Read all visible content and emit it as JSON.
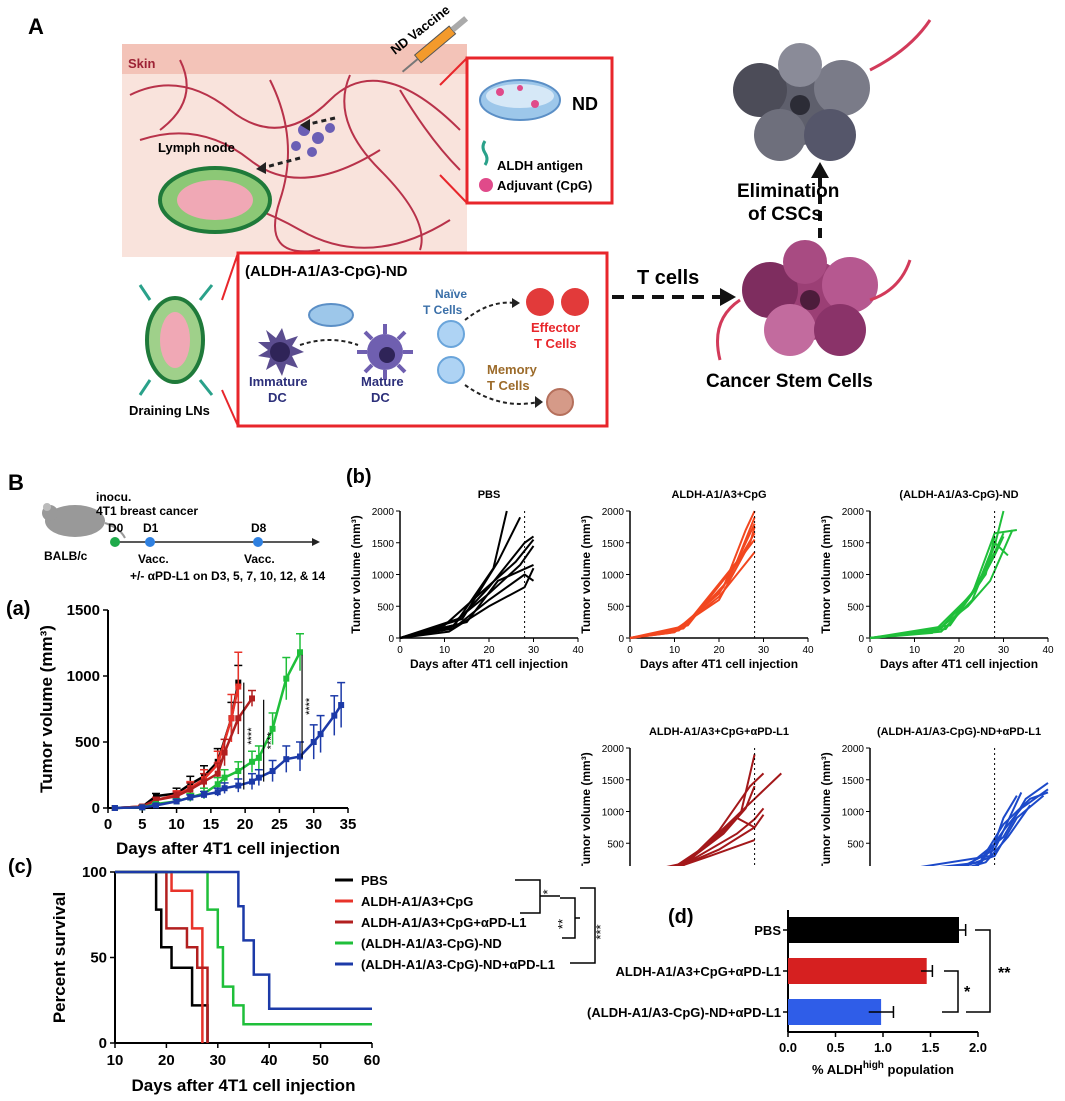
{
  "panel_a": {
    "letter": "A",
    "skin": "Skin",
    "lymph_node": "Lymph node",
    "nd_vaccine": "ND Vaccine",
    "nd": "ND",
    "aldh_antigen": "ALDH antigen",
    "adjuvant": "Adjuvant (CpG)",
    "construct": "(ALDH-A1/A3-CpG)-ND",
    "naive_1": "Naïve",
    "naive_2": "T Cells",
    "effector_1": "Effector",
    "effector_2": "T Cells",
    "memory_1": "Memory",
    "memory_2": "T Cells",
    "immature_1": "Immature",
    "immature_2": "DC",
    "mature_1": "Mature",
    "mature_2": "DC",
    "draining_lns": "Draining LNs",
    "t_cells": "T cells",
    "elimination_1": "Elimination",
    "elimination_2": "of CSCs",
    "csc": "Cancer Stem Cells",
    "colors": {
      "red_box": "#e8262b",
      "skin": "#f7d6cf",
      "vessel": "#c0394e",
      "csc_top": "#5e5f6c",
      "csc_bottom": "#9b3f75"
    }
  },
  "panel_b": {
    "letter": "B",
    "inocu": "inocu.",
    "model": "4T1 breast cancer",
    "mouse": "BALB/c",
    "d0": "D0",
    "d1": "D1",
    "d8": "D8",
    "vacc1": "Vacc.",
    "vacc2": "Vacc.",
    "antibody": "+/- αPD-L1 on D3, 5, 7, 10, 12, & 14"
  },
  "labels": {
    "a": "(a)",
    "b": "(b)",
    "c": "(c)",
    "d": "(d)"
  },
  "chart_data": [
    {
      "id": "a",
      "type": "line",
      "xlabel": "Days after 4T1 cell injection",
      "ylabel": "Tumor volume (mm³)",
      "xlim": [
        0,
        35
      ],
      "ylim": [
        0,
        1500
      ],
      "xticks": [
        "0",
        "5",
        "10",
        "15",
        "20",
        "25",
        "30",
        "35"
      ],
      "yticks": [
        "0",
        "500",
        "1000",
        "1500"
      ],
      "significance": [
        "****",
        "****",
        "****"
      ],
      "series": [
        {
          "name": "PBS",
          "color": "#000000",
          "x": [
            1,
            5,
            7,
            10,
            12,
            14,
            16,
            18,
            19
          ],
          "y": [
            0,
            10,
            90,
            110,
            180,
            240,
            350,
            680,
            950
          ],
          "err": [
            0,
            10,
            20,
            40,
            60,
            80,
            100,
            120,
            130
          ]
        },
        {
          "name": "ALDH-A1/A3+CpG",
          "color": "#e8332a",
          "x": [
            1,
            5,
            7,
            10,
            12,
            14,
            16,
            18,
            19
          ],
          "y": [
            0,
            10,
            60,
            100,
            150,
            220,
            330,
            680,
            920
          ],
          "err": [
            0,
            10,
            20,
            30,
            50,
            70,
            100,
            180,
            260
          ]
        },
        {
          "name": "ALDH-A1/A3+CpG+αPD-L1",
          "color": "#b21f1f",
          "x": [
            1,
            5,
            7,
            10,
            12,
            14,
            16,
            17,
            19,
            21
          ],
          "y": [
            0,
            10,
            60,
            90,
            140,
            200,
            260,
            420,
            680,
            830
          ],
          "err": [
            0,
            10,
            20,
            30,
            50,
            60,
            80,
            100,
            120,
            60
          ]
        },
        {
          "name": "(ALDH-A1/A3-CpG)-ND",
          "color": "#1fbf3a",
          "x": [
            1,
            5,
            7,
            10,
            12,
            14,
            16,
            17,
            19,
            21,
            22,
            24,
            26,
            28
          ],
          "y": [
            0,
            5,
            30,
            50,
            80,
            110,
            180,
            230,
            280,
            350,
            380,
            600,
            980,
            1180
          ],
          "err": [
            0,
            5,
            10,
            20,
            30,
            40,
            50,
            60,
            70,
            80,
            90,
            120,
            160,
            140
          ]
        },
        {
          "name": "(ALDH-A1/A3-CpG)-ND+αPD-L1",
          "color": "#1c3aa8",
          "x": [
            1,
            5,
            7,
            10,
            12,
            14,
            16,
            17,
            19,
            21,
            22,
            24,
            26,
            28,
            30,
            31,
            33,
            34
          ],
          "y": [
            0,
            5,
            20,
            50,
            80,
            100,
            120,
            150,
            170,
            200,
            230,
            280,
            370,
            390,
            500,
            560,
            700,
            780
          ],
          "err": [
            0,
            5,
            10,
            15,
            20,
            25,
            30,
            40,
            50,
            60,
            60,
            80,
            100,
            110,
            130,
            140,
            150,
            170
          ]
        }
      ]
    },
    {
      "id": "b",
      "type": "line",
      "xlabel": "Days after 4T1 cell injection",
      "ylabel": "Tumor volume (mm³)",
      "xlim": [
        0,
        40
      ],
      "ylim": [
        0,
        2000
      ],
      "xticks": [
        "0",
        "10",
        "20",
        "30",
        "40"
      ],
      "yticks": [
        "0",
        "500",
        "1000",
        "1500",
        "2000"
      ],
      "dashed_day": 28,
      "panels": [
        {
          "title": "PBS",
          "color": "#000000"
        },
        {
          "title": "ALDH-A1/A3+CpG",
          "color": "#f2471f"
        },
        {
          "title": "(ALDH-A1/A3-CpG)-ND",
          "color": "#1fbf3a"
        },
        {
          "title": "ALDH-A1/A3+CpG+αPD-L1",
          "color": "#a3181a"
        },
        {
          "title": "(ALDH-A1/A3-CpG)-ND+αPD-L1",
          "color": "#1c49c9"
        }
      ]
    },
    {
      "id": "c",
      "type": "line",
      "xlabel": "Days after 4T1 cell injection",
      "ylabel": "Percent survival",
      "xlim": [
        10,
        60
      ],
      "ylim": [
        0,
        100
      ],
      "xticks": [
        "10",
        "20",
        "30",
        "40",
        "50",
        "60"
      ],
      "yticks": [
        "0",
        "50",
        "100"
      ],
      "significance": [
        "*",
        "**",
        "***"
      ],
      "series": [
        {
          "name": "PBS",
          "color": "#000000",
          "steps": [
            [
              10,
              100
            ],
            [
              18,
              100
            ],
            [
              18,
              78
            ],
            [
              19,
              78
            ],
            [
              19,
              56
            ],
            [
              21,
              56
            ],
            [
              21,
              44
            ],
            [
              25,
              44
            ],
            [
              25,
              22
            ],
            [
              28,
              22
            ],
            [
              28,
              0
            ]
          ]
        },
        {
          "name": "ALDH-A1/A3+CpG",
          "color": "#e8332a",
          "steps": [
            [
              10,
              100
            ],
            [
              21,
              100
            ],
            [
              21,
              89
            ],
            [
              25,
              89
            ],
            [
              25,
              67
            ],
            [
              27,
              67
            ],
            [
              27,
              0
            ]
          ]
        },
        {
          "name": "ALDH-A1/A3+CpG+αPD-L1",
          "color": "#b21f1f",
          "steps": [
            [
              10,
              100
            ],
            [
              20,
              100
            ],
            [
              20,
              67
            ],
            [
              24,
              67
            ],
            [
              24,
              56
            ],
            [
              26,
              56
            ],
            [
              26,
              44
            ],
            [
              28,
              44
            ],
            [
              28,
              0
            ]
          ]
        },
        {
          "name": "(ALDH-A1/A3-CpG)-ND",
          "color": "#1fbf3a",
          "steps": [
            [
              10,
              100
            ],
            [
              28,
              100
            ],
            [
              28,
              78
            ],
            [
              30,
              78
            ],
            [
              30,
              56
            ],
            [
              31,
              56
            ],
            [
              31,
              33
            ],
            [
              33,
              33
            ],
            [
              33,
              22
            ],
            [
              35,
              22
            ],
            [
              35,
              11
            ],
            [
              60,
              11
            ]
          ]
        },
        {
          "name": "(ALDH-A1/A3-CpG)-ND+αPD-L1",
          "color": "#1c3aa8",
          "steps": [
            [
              10,
              100
            ],
            [
              34,
              100
            ],
            [
              34,
              80
            ],
            [
              35,
              80
            ],
            [
              35,
              60
            ],
            [
              37,
              60
            ],
            [
              37,
              40
            ],
            [
              40,
              40
            ],
            [
              40,
              20
            ],
            [
              60,
              20
            ]
          ]
        }
      ]
    },
    {
      "id": "d",
      "type": "bar",
      "orientation": "horizontal",
      "xlabel": "% ALDH",
      "xlabel_sup": "high",
      "xlabel_tail": " population",
      "xlim": [
        0,
        2.0
      ],
      "xticks": [
        "0.0",
        "0.5",
        "1.0",
        "1.5",
        "2.0"
      ],
      "categories": [
        "PBS",
        "ALDH-A1/A3+CpG+αPD-L1",
        "(ALDH-A1/A3-CpG)-ND+αPD-L1"
      ],
      "values": [
        1.8,
        1.46,
        0.98
      ],
      "errors": [
        0.07,
        0.06,
        0.13
      ],
      "colors": [
        "#000000",
        "#d62020",
        "#2f5de8"
      ],
      "significance": [
        "**",
        "*"
      ]
    }
  ]
}
